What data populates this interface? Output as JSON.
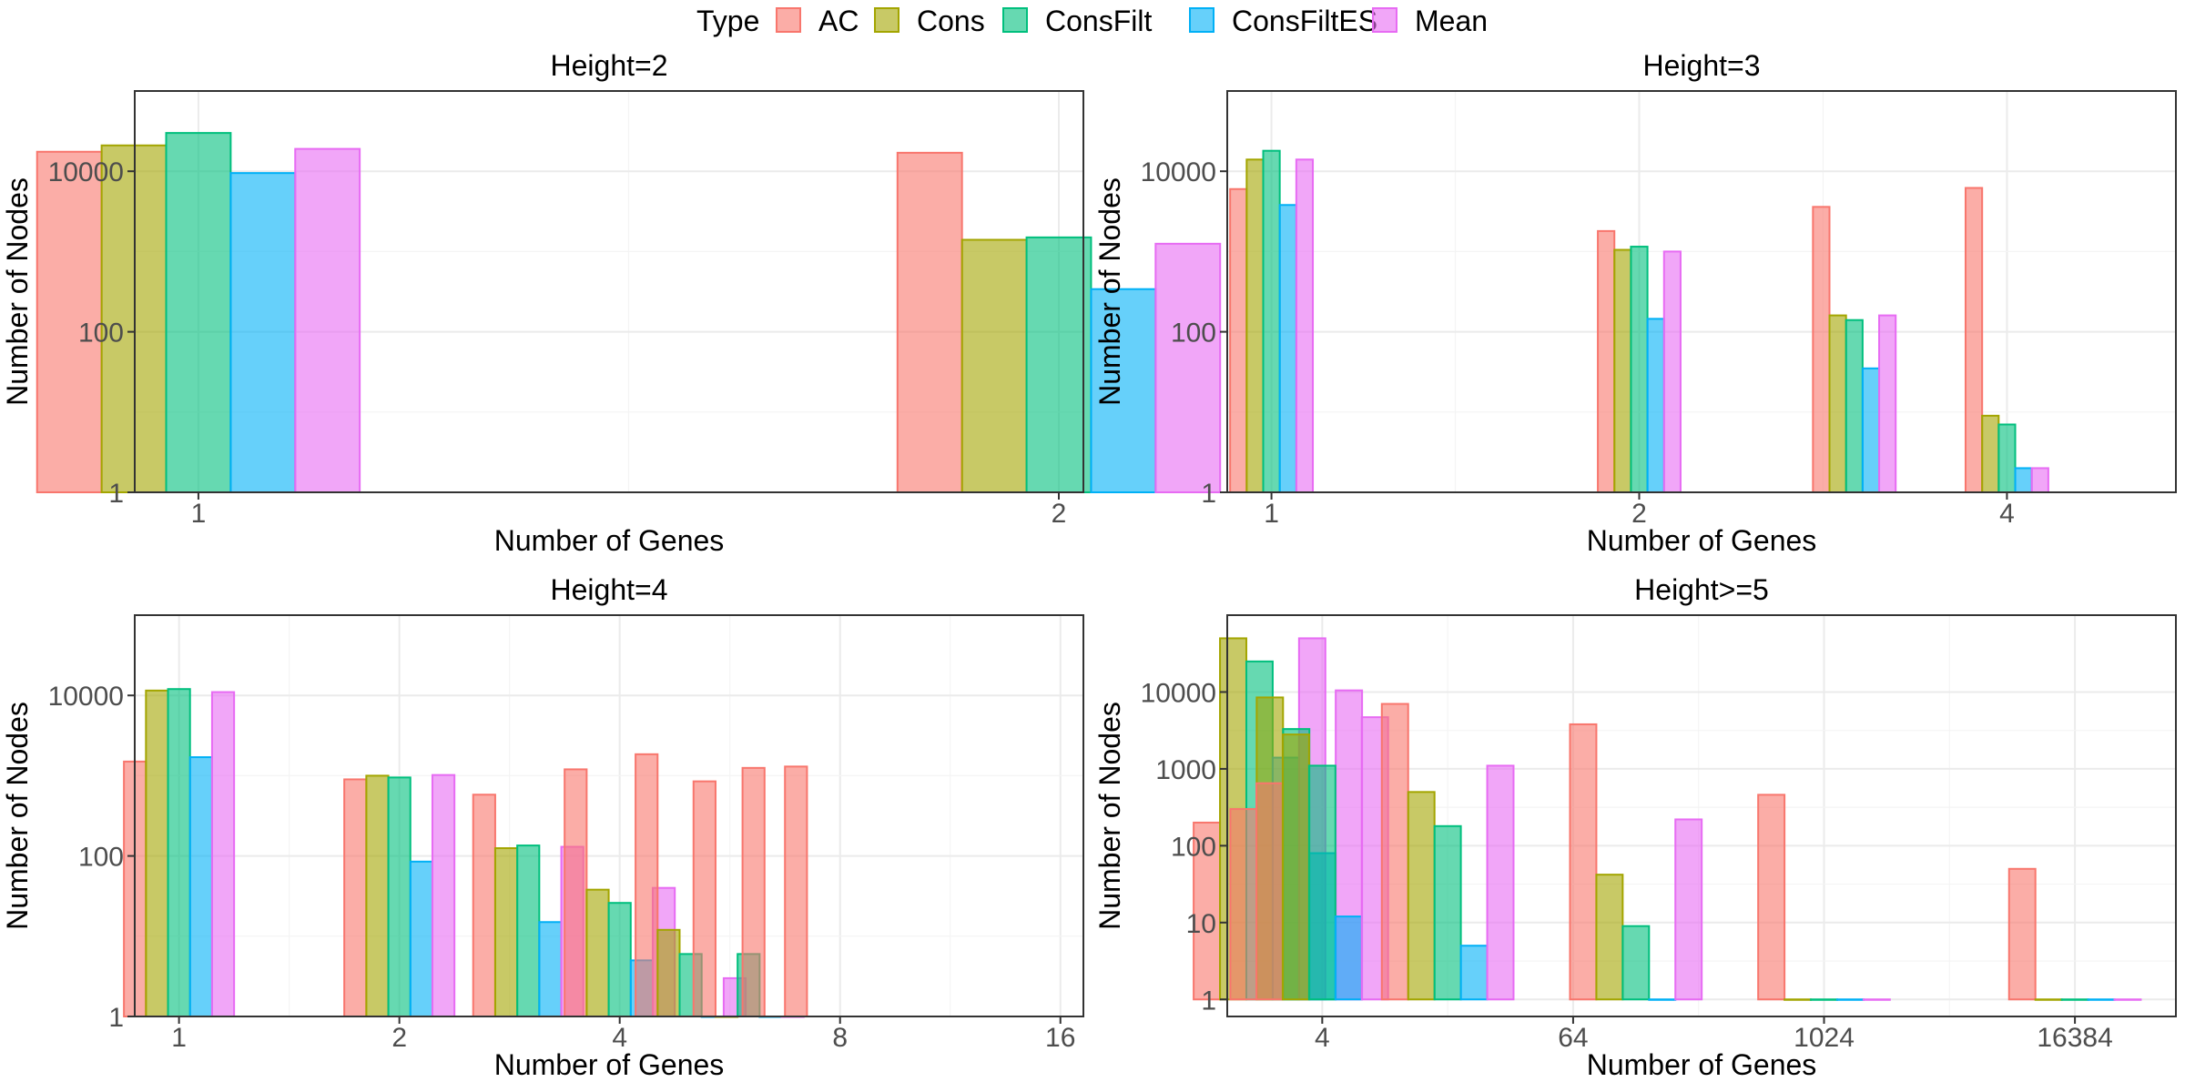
{
  "legend": {
    "title": "Type",
    "placement": "top",
    "entries": [
      {
        "name": "AC",
        "color": "#F8766D"
      },
      {
        "name": "Cons",
        "color": "#A3A500"
      },
      {
        "name": "ConsFilt",
        "color": "#00BF7D"
      },
      {
        "name": "ConsFiltES",
        "color": "#00B0F6"
      },
      {
        "name": "Mean",
        "color": "#E76BF3"
      }
    ]
  },
  "chart_data": [
    {
      "type": "bar",
      "title": "Height=2",
      "xlabel": "Number of Genes",
      "ylabel": "Number of Nodes",
      "x_scale": "log2",
      "y_scale": "log10",
      "xlim": [
        0.95,
        2.04
      ],
      "ylim": [
        1,
        100000
      ],
      "x_ticks": [
        {
          "value": 1,
          "label": "1"
        },
        {
          "value": 2,
          "label": "2"
        }
      ],
      "y_ticks": [
        {
          "value": 1,
          "label": "1"
        },
        {
          "value": 100,
          "label": "100"
        },
        {
          "value": 10000,
          "label": "10000"
        }
      ],
      "grid": true,
      "bar_width_log2": 0.075,
      "groups": [
        {
          "x": 1,
          "values": [
            {
              "type": "AC",
              "value": 17500
            },
            {
              "type": "Cons",
              "value": 21000
            },
            {
              "type": "ConsFilt",
              "value": 30000
            },
            {
              "type": "ConsFiltES",
              "value": 9500
            },
            {
              "type": "Mean",
              "value": 19000
            }
          ]
        },
        {
          "x": 2,
          "values": [
            {
              "type": "AC",
              "value": 17000
            },
            {
              "type": "Cons",
              "value": 1400
            },
            {
              "type": "ConsFilt",
              "value": 1500
            },
            {
              "type": "ConsFiltES",
              "value": 340
            },
            {
              "type": "Mean",
              "value": 1250
            }
          ]
        }
      ]
    },
    {
      "type": "bar",
      "title": "Height=3",
      "xlabel": "Number of Genes",
      "ylabel": "Number of Nodes",
      "x_scale": "log2",
      "y_scale": "log10",
      "xlim": [
        0.92,
        5.5
      ],
      "ylim": [
        1,
        100000
      ],
      "x_ticks": [
        {
          "value": 1,
          "label": "1"
        },
        {
          "value": 2,
          "label": "2"
        },
        {
          "value": 4,
          "label": "4"
        }
      ],
      "y_ticks": [
        {
          "value": 1,
          "label": "1"
        },
        {
          "value": 100,
          "label": "100"
        },
        {
          "value": 10000,
          "label": "10000"
        }
      ],
      "grid": true,
      "bar_width_log2": 0.045,
      "groups": [
        {
          "x": 1,
          "values": [
            {
              "type": "AC",
              "value": 6000
            },
            {
              "type": "Cons",
              "value": 14000
            },
            {
              "type": "ConsFilt",
              "value": 18000
            },
            {
              "type": "ConsFiltES",
              "value": 3800
            },
            {
              "type": "Mean",
              "value": 14000
            }
          ]
        },
        {
          "x": 2,
          "values": [
            {
              "type": "AC",
              "value": 1800
            },
            {
              "type": "Cons",
              "value": 1050
            },
            {
              "type": "ConsFilt",
              "value": 1150
            },
            {
              "type": "ConsFiltES",
              "value": 145
            },
            {
              "type": "Mean",
              "value": 1000
            }
          ]
        },
        {
          "x": 3,
          "values": [
            {
              "type": "AC",
              "value": 3600
            },
            {
              "type": "Cons",
              "value": 160
            },
            {
              "type": "ConsFilt",
              "value": 140
            },
            {
              "type": "ConsFiltES",
              "value": 35
            },
            {
              "type": "Mean",
              "value": 160
            }
          ]
        },
        {
          "x": 4,
          "values": [
            {
              "type": "AC",
              "value": 6200
            },
            {
              "type": "Cons",
              "value": 9
            },
            {
              "type": "ConsFilt",
              "value": 7
            },
            {
              "type": "ConsFiltES",
              "value": 2
            },
            {
              "type": "Mean",
              "value": 2
            }
          ]
        }
      ]
    },
    {
      "type": "bar",
      "title": "Height=4",
      "xlabel": "Number of Genes",
      "ylabel": "Number of Nodes",
      "x_scale": "log2",
      "y_scale": "log10",
      "xlim": [
        0.87,
        17.2
      ],
      "ylim": [
        1,
        100000
      ],
      "x_ticks": [
        {
          "value": 1,
          "label": "1"
        },
        {
          "value": 2,
          "label": "2"
        },
        {
          "value": 4,
          "label": "4"
        },
        {
          "value": 8,
          "label": "8"
        },
        {
          "value": 16,
          "label": "16"
        }
      ],
      "y_ticks": [
        {
          "value": 1,
          "label": "1"
        },
        {
          "value": 100,
          "label": "100"
        },
        {
          "value": 10000,
          "label": "10000"
        }
      ],
      "grid": true,
      "bar_width_log2": 0.1,
      "groups": [
        {
          "x": 1,
          "values": [
            {
              "type": "AC",
              "value": 1500
            },
            {
              "type": "Cons",
              "value": 11500
            },
            {
              "type": "ConsFilt",
              "value": 12000
            },
            {
              "type": "ConsFiltES",
              "value": 1700
            },
            {
              "type": "Mean",
              "value": 11000
            }
          ]
        },
        {
          "x": 2,
          "values": [
            {
              "type": "AC",
              "value": 900
            },
            {
              "type": "Cons",
              "value": 1000
            },
            {
              "type": "ConsFilt",
              "value": 950
            },
            {
              "type": "ConsFiltES",
              "value": 85
            },
            {
              "type": "Mean",
              "value": 1020
            }
          ]
        },
        {
          "x": 3,
          "values": [
            {
              "type": "AC",
              "value": 580
            },
            {
              "type": "Cons",
              "value": 125
            },
            {
              "type": "ConsFilt",
              "value": 135
            },
            {
              "type": "ConsFiltES",
              "value": 15
            },
            {
              "type": "Mean",
              "value": 130
            }
          ]
        },
        {
          "x": 4,
          "values": [
            {
              "type": "AC",
              "value": 1200
            },
            {
              "type": "Cons",
              "value": 38
            },
            {
              "type": "ConsFilt",
              "value": 26
            },
            {
              "type": "ConsFiltES",
              "value": 5
            },
            {
              "type": "Mean",
              "value": 40
            }
          ]
        },
        {
          "x": 5,
          "values": [
            {
              "type": "AC",
              "value": 1850
            },
            {
              "type": "Cons",
              "value": 12
            },
            {
              "type": "ConsFilt",
              "value": 6
            },
            {
              "type": "ConsFiltES",
              "value": 1
            },
            {
              "type": "Mean",
              "value": 3
            }
          ]
        },
        {
          "x": 6,
          "values": [
            {
              "type": "AC",
              "value": 850
            },
            {
              "type": "Cons",
              "value": 1
            },
            {
              "type": "ConsFilt",
              "value": 6
            },
            {
              "type": "ConsFiltES",
              "value": 1
            },
            {
              "type": "Mean",
              "value": 1
            }
          ]
        },
        {
          "x": 7,
          "values": [
            {
              "type": "AC",
              "value": 1250
            }
          ]
        },
        {
          "x": 8,
          "values": [
            {
              "type": "AC",
              "value": 1300
            }
          ]
        }
      ]
    },
    {
      "type": "bar",
      "title": "Height>=5",
      "xlabel": "Number of Genes",
      "ylabel": "Number of Nodes",
      "x_scale": "log2",
      "y_scale": "log10",
      "xlim": [
        1.4,
        50000
      ],
      "ylim": [
        0.6,
        100000
      ],
      "x_ticks": [
        {
          "value": 4,
          "label": "4"
        },
        {
          "value": 64,
          "label": "64"
        },
        {
          "value": 1024,
          "label": "1024"
        },
        {
          "value": 16384,
          "label": "16384"
        }
      ],
      "y_ticks": [
        {
          "value": 1,
          "label": "1"
        },
        {
          "value": 10,
          "label": "10"
        },
        {
          "value": 100,
          "label": "100"
        },
        {
          "value": 1000,
          "label": "1000"
        },
        {
          "value": 10000,
          "label": "10000"
        }
      ],
      "grid": true,
      "bar_width_log2": 0.42,
      "groups": [
        {
          "x": 2,
          "values": [
            {
              "type": "AC",
              "value": 200
            },
            {
              "type": "Cons",
              "value": 50000
            },
            {
              "type": "ConsFilt",
              "value": 25000
            },
            {
              "type": "ConsFiltES",
              "value": 1400
            },
            {
              "type": "Mean",
              "value": 50000
            }
          ]
        },
        {
          "x": 3,
          "values": [
            {
              "type": "AC",
              "value": 300
            },
            {
              "type": "Cons",
              "value": 8500
            },
            {
              "type": "ConsFilt",
              "value": 3300
            },
            {
              "type": "ConsFiltES",
              "value": 80
            },
            {
              "type": "Mean",
              "value": 10500
            }
          ]
        },
        {
          "x": 4,
          "values": [
            {
              "type": "AC",
              "value": 650
            },
            {
              "type": "Cons",
              "value": 2800
            },
            {
              "type": "ConsFilt",
              "value": 1100
            },
            {
              "type": "ConsFiltES",
              "value": 12
            },
            {
              "type": "Mean",
              "value": 4700
            }
          ]
        },
        {
          "x": 16,
          "values": [
            {
              "type": "AC",
              "value": 7000
            },
            {
              "type": "Cons",
              "value": 500
            },
            {
              "type": "ConsFilt",
              "value": 180
            },
            {
              "type": "ConsFiltES",
              "value": 5
            },
            {
              "type": "Mean",
              "value": 1100
            }
          ]
        },
        {
          "x": 128,
          "values": [
            {
              "type": "AC",
              "value": 3800
            },
            {
              "type": "Cons",
              "value": 42
            },
            {
              "type": "ConsFilt",
              "value": 9
            },
            {
              "type": "ConsFiltES",
              "value": 1
            },
            {
              "type": "Mean",
              "value": 220
            }
          ]
        },
        {
          "x": 1024,
          "values": [
            {
              "type": "AC",
              "value": 460
            },
            {
              "type": "Cons",
              "value": 1
            },
            {
              "type": "ConsFilt",
              "value": 1
            },
            {
              "type": "ConsFiltES",
              "value": 1
            },
            {
              "type": "Mean",
              "value": 1
            }
          ]
        },
        {
          "x": 16384,
          "values": [
            {
              "type": "AC",
              "value": 50
            },
            {
              "type": "Cons",
              "value": 1
            },
            {
              "type": "ConsFilt",
              "value": 1
            },
            {
              "type": "ConsFiltES",
              "value": 1
            },
            {
              "type": "Mean",
              "value": 1
            }
          ]
        }
      ]
    }
  ]
}
